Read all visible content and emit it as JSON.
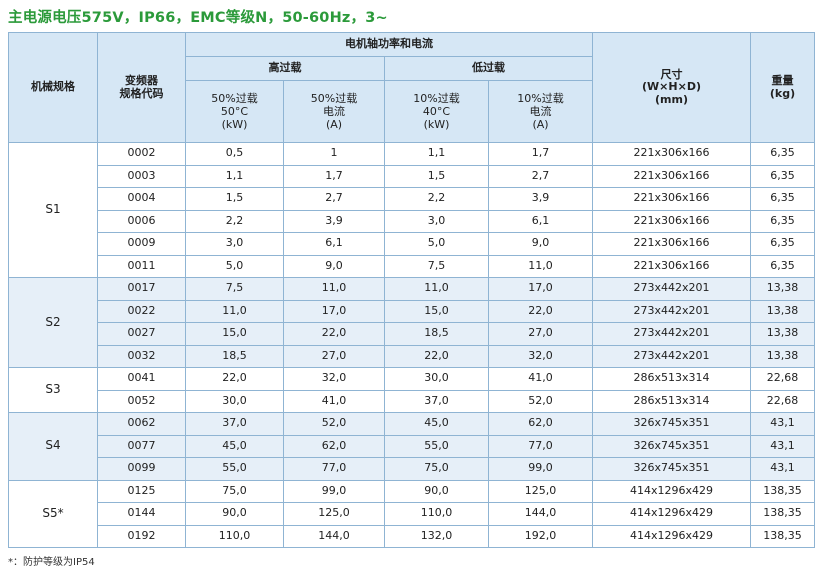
{
  "title": "主电源电压575V，IP66，EMC等级N，50-60Hz，3~",
  "headers": {
    "mech_size": "机械规格",
    "drive_code": [
      "变频器",
      "规格代码"
    ],
    "power_current": "电机轴功率和电流",
    "high_overload": "高过载",
    "low_overload": "低过载",
    "ho_power": [
      "50%过载",
      "50°C",
      "(kW)"
    ],
    "ho_current": [
      "50%过载",
      "电流",
      "(A)"
    ],
    "lo_power": [
      "10%过载",
      "40°C",
      "(kW)"
    ],
    "lo_current": [
      "10%过载",
      "电流",
      "(A)"
    ],
    "dimensions": [
      "尺寸",
      "(W×H×D)",
      "(mm)"
    ],
    "weight": [
      "重量",
      "(kg)"
    ]
  },
  "groups": [
    {
      "size": "S1",
      "rows": [
        {
          "code": "0002",
          "ho_kw": "0,5",
          "ho_a": "1",
          "lo_kw": "1,1",
          "lo_a": "1,7",
          "dim": "221x306x166",
          "kg": "6,35"
        },
        {
          "code": "0003",
          "ho_kw": "1,1",
          "ho_a": "1,7",
          "lo_kw": "1,5",
          "lo_a": "2,7",
          "dim": "221x306x166",
          "kg": "6,35"
        },
        {
          "code": "0004",
          "ho_kw": "1,5",
          "ho_a": "2,7",
          "lo_kw": "2,2",
          "lo_a": "3,9",
          "dim": "221x306x166",
          "kg": "6,35"
        },
        {
          "code": "0006",
          "ho_kw": "2,2",
          "ho_a": "3,9",
          "lo_kw": "3,0",
          "lo_a": "6,1",
          "dim": "221x306x166",
          "kg": "6,35"
        },
        {
          "code": "0009",
          "ho_kw": "3,0",
          "ho_a": "6,1",
          "lo_kw": "5,0",
          "lo_a": "9,0",
          "dim": "221x306x166",
          "kg": "6,35"
        },
        {
          "code": "0011",
          "ho_kw": "5,0",
          "ho_a": "9,0",
          "lo_kw": "7,5",
          "lo_a": "11,0",
          "dim": "221x306x166",
          "kg": "6,35"
        }
      ]
    },
    {
      "size": "S2",
      "rows": [
        {
          "code": "0017",
          "ho_kw": "7,5",
          "ho_a": "11,0",
          "lo_kw": "11,0",
          "lo_a": "17,0",
          "dim": "273x442x201",
          "kg": "13,38"
        },
        {
          "code": "0022",
          "ho_kw": "11,0",
          "ho_a": "17,0",
          "lo_kw": "15,0",
          "lo_a": "22,0",
          "dim": "273x442x201",
          "kg": "13,38"
        },
        {
          "code": "0027",
          "ho_kw": "15,0",
          "ho_a": "22,0",
          "lo_kw": "18,5",
          "lo_a": "27,0",
          "dim": "273x442x201",
          "kg": "13,38"
        },
        {
          "code": "0032",
          "ho_kw": "18,5",
          "ho_a": "27,0",
          "lo_kw": "22,0",
          "lo_a": "32,0",
          "dim": "273x442x201",
          "kg": "13,38"
        }
      ]
    },
    {
      "size": "S3",
      "rows": [
        {
          "code": "0041",
          "ho_kw": "22,0",
          "ho_a": "32,0",
          "lo_kw": "30,0",
          "lo_a": "41,0",
          "dim": "286x513x314",
          "kg": "22,68"
        },
        {
          "code": "0052",
          "ho_kw": "30,0",
          "ho_a": "41,0",
          "lo_kw": "37,0",
          "lo_a": "52,0",
          "dim": "286x513x314",
          "kg": "22,68"
        }
      ]
    },
    {
      "size": "S4",
      "rows": [
        {
          "code": "0062",
          "ho_kw": "37,0",
          "ho_a": "52,0",
          "lo_kw": "45,0",
          "lo_a": "62,0",
          "dim": "326x745x351",
          "kg": "43,1"
        },
        {
          "code": "0077",
          "ho_kw": "45,0",
          "ho_a": "62,0",
          "lo_kw": "55,0",
          "lo_a": "77,0",
          "dim": "326x745x351",
          "kg": "43,1"
        },
        {
          "code": "0099",
          "ho_kw": "55,0",
          "ho_a": "77,0",
          "lo_kw": "75,0",
          "lo_a": "99,0",
          "dim": "326x745x351",
          "kg": "43,1"
        }
      ]
    },
    {
      "size": "S5*",
      "rows": [
        {
          "code": "0125",
          "ho_kw": "75,0",
          "ho_a": "99,0",
          "lo_kw": "90,0",
          "lo_a": "125,0",
          "dim": "414x1296x429",
          "kg": "138,35"
        },
        {
          "code": "0144",
          "ho_kw": "90,0",
          "ho_a": "125,0",
          "lo_kw": "110,0",
          "lo_a": "144,0",
          "dim": "414x1296x429",
          "kg": "138,35"
        },
        {
          "code": "0192",
          "ho_kw": "110,0",
          "ho_a": "144,0",
          "lo_kw": "132,0",
          "lo_a": "192,0",
          "dim": "414x1296x429",
          "kg": "138,35"
        }
      ]
    }
  ],
  "footnote": "*：防护等级为IP54",
  "colors": {
    "title": "#2b9a3a",
    "header_bg": "#d6e7f5",
    "alt_row_bg": "#e6eff8",
    "border": "#8fb4d3"
  }
}
